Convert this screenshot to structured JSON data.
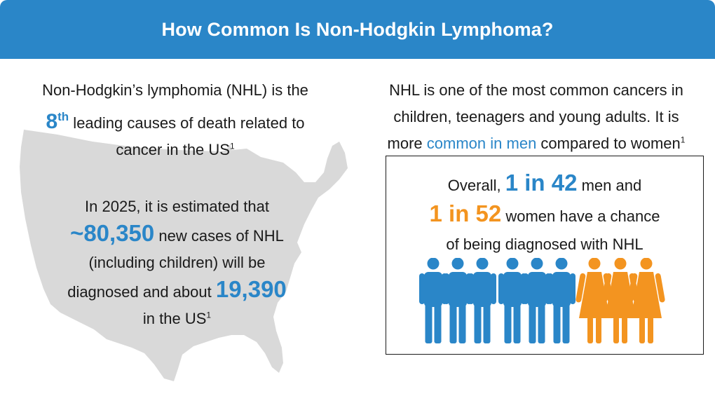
{
  "header": {
    "title": "How Common Is Non-Hodgkin Lymphoma?"
  },
  "left": {
    "intro_line1": "Non-Hodgkin’s lymphomia (NHL) is the",
    "rank_number": "8",
    "rank_suffix": "th",
    "intro_line2": " leading causes of death related to",
    "intro_line3": "cancer in the US",
    "intro_ref": "1",
    "estimate_line1": "In 2025, it is estimated that",
    "new_cases": "~80,350",
    "estimate_line2": " new cases of NHL",
    "estimate_line3": "(including children) will be",
    "estimate_line4": "diagnosed and about ",
    "deaths": "19,390",
    "estimate_line5": "in the US",
    "estimate_ref": "1"
  },
  "right": {
    "intro_line1": "NHL is one of the most common cancers in",
    "intro_line2": "children, teenagers and young adults. It is",
    "intro_line3a": "more ",
    "intro_highlight": "common in men",
    "intro_line3b": " compared to women",
    "intro_ref": "1",
    "stat_line1a": "Overall, ",
    "men_ratio": "1 in 42",
    "stat_line1b": " men and",
    "women_ratio": "1 in 52",
    "stat_line2b": " women have a chance",
    "stat_line3": "of being diagnosed with NHL"
  },
  "colors": {
    "accent_blue": "#2a86c8",
    "accent_orange": "#f39420",
    "map_gray": "#d9d9d9"
  },
  "icons": {
    "map": "us-map-icon",
    "male": "male-person-icon",
    "female": "female-person-icon"
  }
}
